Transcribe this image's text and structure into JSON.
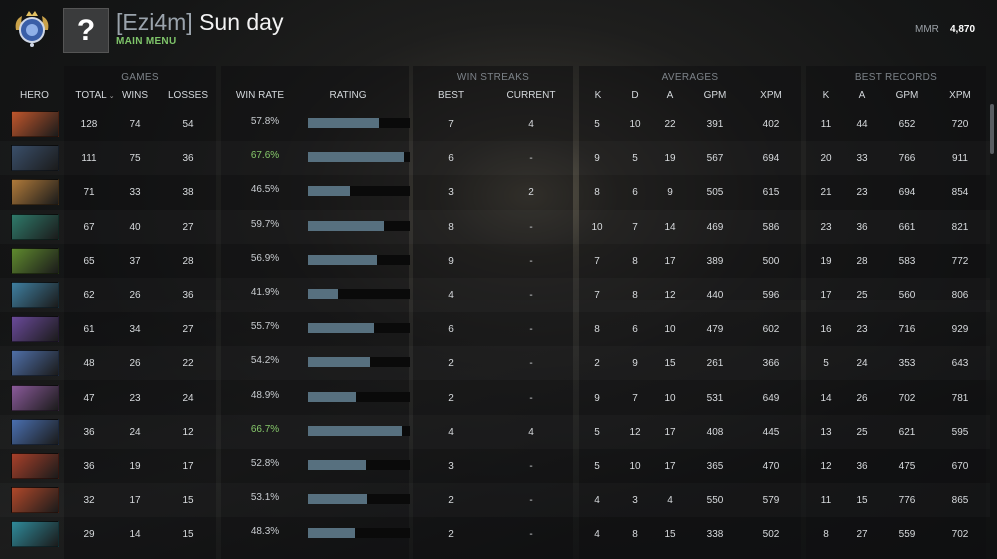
{
  "header": {
    "team_tag": "[Ezi4m]",
    "player_name": "Sun day",
    "main_menu_label": "MAIN MENU",
    "avatar_glyph": "?",
    "mmr_label": "MMR",
    "mmr_value": "4,870"
  },
  "groups": {
    "games": "GAMES",
    "win_streaks": "WIN STREAKS",
    "averages": "AVERAGES",
    "best_records": "BEST RECORDS"
  },
  "columns": {
    "hero": "HERO",
    "total": "TOTAL",
    "wins": "WINS",
    "losses": "LOSSES",
    "win_rate": "WIN RATE",
    "rating": "RATING",
    "best": "BEST",
    "current": "CURRENT",
    "k": "K",
    "d": "D",
    "a": "A",
    "gpm": "GPM",
    "xpm": "XPM",
    "best_k": "K",
    "best_a": "A",
    "best_gpm": "GPM",
    "best_xpm": "XPM"
  },
  "rows": [
    {
      "total": "128",
      "wins": "74",
      "losses": "54",
      "win_rate": "57.8%",
      "best": "7",
      "current": "4",
      "k": "5",
      "d": "10",
      "a": "22",
      "gpm": "391",
      "xpm": "402",
      "bk": "11",
      "ba": "44",
      "bgpm": "652",
      "bxpm": "720",
      "color": "#c0562c"
    },
    {
      "total": "111",
      "wins": "75",
      "losses": "36",
      "win_rate": "67.6%",
      "best": "6",
      "current": "-",
      "k": "9",
      "d": "5",
      "a": "19",
      "gpm": "567",
      "xpm": "694",
      "bk": "20",
      "ba": "33",
      "bgpm": "766",
      "bxpm": "911",
      "color": "#3a4f6a"
    },
    {
      "total": "71",
      "wins": "33",
      "losses": "38",
      "win_rate": "46.5%",
      "best": "3",
      "current": "2",
      "k": "8",
      "d": "6",
      "a": "9",
      "gpm": "505",
      "xpm": "615",
      "bk": "21",
      "ba": "23",
      "bgpm": "694",
      "bxpm": "854",
      "color": "#b07a3a"
    },
    {
      "total": "67",
      "wins": "40",
      "losses": "27",
      "win_rate": "59.7%",
      "best": "8",
      "current": "-",
      "k": "10",
      "d": "7",
      "a": "14",
      "gpm": "469",
      "xpm": "586",
      "bk": "23",
      "ba": "36",
      "bgpm": "661",
      "bxpm": "821",
      "color": "#2f7a6a"
    },
    {
      "total": "65",
      "wins": "37",
      "losses": "28",
      "win_rate": "56.9%",
      "best": "9",
      "current": "-",
      "k": "7",
      "d": "8",
      "a": "17",
      "gpm": "389",
      "xpm": "500",
      "bk": "19",
      "ba": "28",
      "bgpm": "583",
      "bxpm": "772",
      "color": "#5f8a2e"
    },
    {
      "total": "62",
      "wins": "26",
      "losses": "36",
      "win_rate": "41.9%",
      "best": "4",
      "current": "-",
      "k": "7",
      "d": "8",
      "a": "12",
      "gpm": "440",
      "xpm": "596",
      "bk": "17",
      "ba": "25",
      "bgpm": "560",
      "bxpm": "806",
      "color": "#3f7fa0"
    },
    {
      "total": "61",
      "wins": "34",
      "losses": "27",
      "win_rate": "55.7%",
      "best": "6",
      "current": "-",
      "k": "8",
      "d": "6",
      "a": "10",
      "gpm": "479",
      "xpm": "602",
      "bk": "16",
      "ba": "23",
      "bgpm": "716",
      "bxpm": "929",
      "color": "#6a4a9a"
    },
    {
      "total": "48",
      "wins": "26",
      "losses": "22",
      "win_rate": "54.2%",
      "best": "2",
      "current": "-",
      "k": "2",
      "d": "9",
      "a": "15",
      "gpm": "261",
      "xpm": "366",
      "bk": "5",
      "ba": "24",
      "bgpm": "353",
      "bxpm": "643",
      "color": "#4f6fa8"
    },
    {
      "total": "47",
      "wins": "23",
      "losses": "24",
      "win_rate": "48.9%",
      "best": "2",
      "current": "-",
      "k": "9",
      "d": "7",
      "a": "10",
      "gpm": "531",
      "xpm": "649",
      "bk": "14",
      "ba": "26",
      "bgpm": "702",
      "bxpm": "781",
      "color": "#8a5a9a"
    },
    {
      "total": "36",
      "wins": "24",
      "losses": "12",
      "win_rate": "66.7%",
      "best": "4",
      "current": "4",
      "k": "5",
      "d": "12",
      "a": "17",
      "gpm": "408",
      "xpm": "445",
      "bk": "13",
      "ba": "25",
      "bgpm": "621",
      "bxpm": "595",
      "color": "#4a6fb0"
    },
    {
      "total": "36",
      "wins": "19",
      "losses": "17",
      "win_rate": "52.8%",
      "best": "3",
      "current": "-",
      "k": "5",
      "d": "10",
      "a": "17",
      "gpm": "365",
      "xpm": "470",
      "bk": "12",
      "ba": "36",
      "bgpm": "475",
      "bxpm": "670",
      "color": "#a8402a"
    },
    {
      "total": "32",
      "wins": "17",
      "losses": "15",
      "win_rate": "53.1%",
      "best": "2",
      "current": "-",
      "k": "4",
      "d": "3",
      "a": "4",
      "gpm": "550",
      "xpm": "579",
      "bk": "11",
      "ba": "15",
      "bgpm": "776",
      "bxpm": "865",
      "color": "#b0482a"
    },
    {
      "total": "29",
      "wins": "14",
      "losses": "15",
      "win_rate": "48.3%",
      "best": "2",
      "current": "-",
      "k": "4",
      "d": "8",
      "a": "15",
      "gpm": "338",
      "xpm": "502",
      "bk": "8",
      "ba": "27",
      "bgpm": "559",
      "bxpm": "702",
      "color": "#2f8a9a"
    }
  ]
}
